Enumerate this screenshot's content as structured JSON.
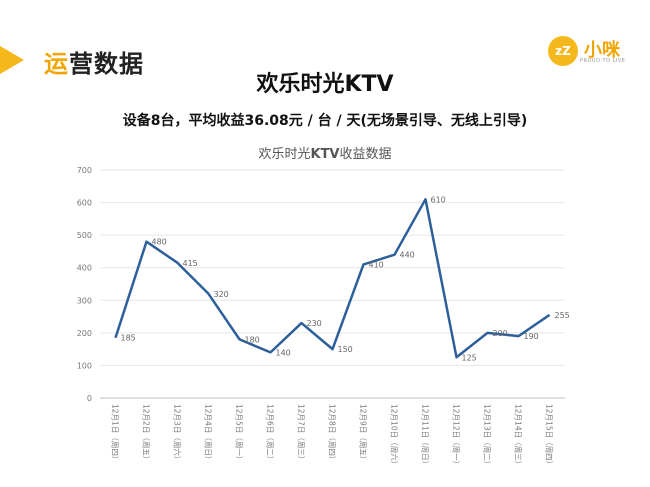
{
  "header": {
    "section_title_accent": "运",
    "section_title_rest": "营数据",
    "logo_mark": "zZ",
    "logo_text": "小咪",
    "logo_sub": "PROUD TO LIVE"
  },
  "main_title": "欢乐时光KTV",
  "subtitle": "设备8台，平均收益36.08元 / 台 / 天(无场景引导、无线上引导)",
  "colors": {
    "accent": "#f4b81a",
    "line": "#2d5f9a",
    "grid": "#e6e6e6"
  },
  "chart_data": {
    "type": "line",
    "title_prefix": "欢乐时光",
    "title_bold": "KTV",
    "title_suffix": "收益数据",
    "categories": [
      "12月1日（周四）",
      "12月2日（周五）",
      "12月3日（周六）",
      "12月4日（周日）",
      "12月5日（周一）",
      "12月6日（周二）",
      "12月7日（周三）",
      "12月8日（周四）",
      "12月9日（周五）",
      "12月10日（周六）",
      "12月11日（周日）",
      "12月12日（周一）",
      "12月13日（周二）",
      "12月14日（周三）",
      "12月15日（周四）"
    ],
    "values": [
      185,
      480,
      415,
      320,
      180,
      140,
      230,
      150,
      410,
      440,
      610,
      125,
      200,
      190,
      255
    ],
    "ylim": [
      0,
      700
    ],
    "yticks": [
      "0",
      "100",
      "200",
      "300",
      "400",
      "500",
      "600",
      "700"
    ],
    "grid": true,
    "xlabel": "",
    "ylabel": ""
  }
}
